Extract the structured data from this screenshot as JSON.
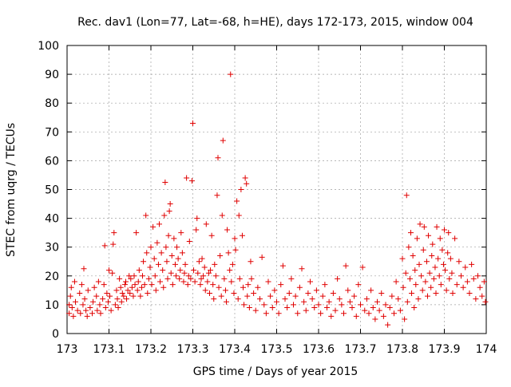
{
  "chart_data": {
    "type": "scatter",
    "title": "Rec. dav1 (Lon=77, Lat=-68, h=HE), days 172-173, 2015, window 004",
    "xlabel": "GPS time / Days of year 2015",
    "ylabel": "STEC from uqrg / TECUs",
    "xlim": [
      173,
      174
    ],
    "ylim": [
      0,
      100
    ],
    "x_ticks": [
      173,
      173.1,
      173.2,
      173.3,
      173.4,
      173.5,
      173.6,
      173.7,
      173.8,
      173.9,
      174
    ],
    "x_tick_labels": [
      "173",
      "173.1",
      "173.2",
      "173.3",
      "173.4",
      "173.5",
      "173.6",
      "173.7",
      "173.8",
      "173.9",
      "174"
    ],
    "y_ticks": [
      0,
      10,
      20,
      30,
      40,
      50,
      60,
      70,
      80,
      90,
      100
    ],
    "y_tick_labels": [
      "0",
      "10",
      "20",
      "30",
      "40",
      "50",
      "60",
      "70",
      "80",
      "90",
      "100"
    ],
    "grid": true,
    "marker": "plus",
    "color": "#e00000",
    "series": [
      {
        "points": [
          [
            173.005,
            10
          ],
          [
            173.005,
            7
          ],
          [
            173.008,
            13
          ],
          [
            173.01,
            16
          ],
          [
            173.012,
            9
          ],
          [
            173.015,
            6
          ],
          [
            173.018,
            18
          ],
          [
            173.02,
            11
          ],
          [
            173.025,
            8
          ],
          [
            173.03,
            14
          ],
          [
            173.032,
            7
          ],
          [
            173.035,
            17
          ],
          [
            173.038,
            10
          ],
          [
            173.04,
            22.5
          ],
          [
            173.042,
            12
          ],
          [
            173.045,
            8
          ],
          [
            173.048,
            6
          ],
          [
            173.05,
            15
          ],
          [
            173.055,
            9
          ],
          [
            173.06,
            7
          ],
          [
            173.062,
            11
          ],
          [
            173.065,
            16
          ],
          [
            173.07,
            13
          ],
          [
            173.072,
            8
          ],
          [
            173.075,
            18
          ],
          [
            173.078,
            10
          ],
          [
            173.08,
            7
          ],
          [
            173.085,
            12
          ],
          [
            173.088,
            17
          ],
          [
            173.09,
            30.5
          ],
          [
            173.092,
            9
          ],
          [
            173.095,
            14
          ],
          [
            173.098,
            11
          ],
          [
            173.1,
            22
          ],
          [
            173.102,
            13
          ],
          [
            173.105,
            8
          ],
          [
            173.108,
            21
          ],
          [
            173.11,
            31
          ],
          [
            173.112,
            35
          ],
          [
            173.115,
            10
          ],
          [
            173.118,
            15
          ],
          [
            173.12,
            12
          ],
          [
            173.122,
            9
          ],
          [
            173.125,
            19
          ],
          [
            173.128,
            16
          ],
          [
            173.13,
            11
          ],
          [
            173.132,
            14
          ],
          [
            173.135,
            13
          ],
          [
            173.138,
            17
          ],
          [
            173.14,
            18
          ],
          [
            173.142,
            12
          ],
          [
            173.145,
            15
          ],
          [
            173.148,
            20
          ],
          [
            173.15,
            14
          ],
          [
            173.152,
            19
          ],
          [
            173.155,
            16
          ],
          [
            173.158,
            13
          ],
          [
            173.16,
            20
          ],
          [
            173.162,
            17
          ],
          [
            173.165,
            35
          ],
          [
            173.168,
            15
          ],
          [
            173.17,
            18
          ],
          [
            173.172,
            22
          ],
          [
            173.175,
            13
          ],
          [
            173.178,
            16
          ],
          [
            173.18,
            20
          ],
          [
            173.182,
            25
          ],
          [
            173.185,
            17
          ],
          [
            173.188,
            41
          ],
          [
            173.19,
            28
          ],
          [
            173.192,
            14
          ],
          [
            173.195,
            19
          ],
          [
            173.198,
            23
          ],
          [
            173.2,
            30
          ],
          [
            173.202,
            17
          ],
          [
            173.205,
            37
          ],
          [
            173.208,
            26
          ],
          [
            173.21,
            20
          ],
          [
            173.212,
            15
          ],
          [
            173.215,
            31.5
          ],
          [
            173.218,
            24
          ],
          [
            173.22,
            38
          ],
          [
            173.222,
            18
          ],
          [
            173.225,
            28
          ],
          [
            173.228,
            22
          ],
          [
            173.23,
            16
          ],
          [
            173.232,
            41
          ],
          [
            173.234,
            52.5
          ],
          [
            173.236,
            30
          ],
          [
            173.238,
            25
          ],
          [
            173.24,
            19
          ],
          [
            173.242,
            34
          ],
          [
            173.244,
            42.5
          ],
          [
            173.246,
            45
          ],
          [
            173.248,
            21
          ],
          [
            173.25,
            27
          ],
          [
            173.252,
            17
          ],
          [
            173.255,
            33
          ],
          [
            173.258,
            24
          ],
          [
            173.26,
            20
          ],
          [
            173.262,
            30
          ],
          [
            173.265,
            26
          ],
          [
            173.268,
            19
          ],
          [
            173.27,
            22
          ],
          [
            173.272,
            35
          ],
          [
            173.275,
            28
          ],
          [
            173.278,
            18
          ],
          [
            173.28,
            21
          ],
          [
            173.282,
            24
          ],
          [
            173.285,
            54
          ],
          [
            173.288,
            17
          ],
          [
            173.29,
            20
          ],
          [
            173.292,
            32
          ],
          [
            173.295,
            19
          ],
          [
            173.298,
            53
          ],
          [
            173.3,
            73
          ],
          [
            173.302,
            22
          ],
          [
            173.305,
            18
          ],
          [
            173.308,
            36
          ],
          [
            173.31,
            40
          ],
          [
            173.312,
            21
          ],
          [
            173.315,
            25
          ],
          [
            173.318,
            17
          ],
          [
            173.32,
            19
          ],
          [
            173.322,
            26
          ],
          [
            173.325,
            20
          ],
          [
            173.328,
            23
          ],
          [
            173.33,
            15
          ],
          [
            173.332,
            38
          ],
          [
            173.335,
            18
          ],
          [
            173.338,
            21
          ],
          [
            173.34,
            14
          ],
          [
            173.342,
            22
          ],
          [
            173.345,
            34
          ],
          [
            173.348,
            17
          ],
          [
            173.35,
            12
          ],
          [
            173.352,
            24
          ],
          [
            173.355,
            20
          ],
          [
            173.358,
            48
          ],
          [
            173.36,
            61
          ],
          [
            173.362,
            16
          ],
          [
            173.365,
            27
          ],
          [
            173.368,
            13
          ],
          [
            173.37,
            41
          ],
          [
            173.372,
            67
          ],
          [
            173.375,
            19
          ],
          [
            173.378,
            15
          ],
          [
            173.38,
            11
          ],
          [
            173.382,
            36
          ],
          [
            173.385,
            28
          ],
          [
            173.388,
            22
          ],
          [
            173.39,
            90
          ],
          [
            173.392,
            18
          ],
          [
            173.395,
            24
          ],
          [
            173.398,
            14
          ],
          [
            173.4,
            33
          ],
          [
            173.402,
            29
          ],
          [
            173.405,
            46
          ],
          [
            173.408,
            12
          ],
          [
            173.41,
            41
          ],
          [
            173.412,
            19
          ],
          [
            173.415,
            50
          ],
          [
            173.418,
            34
          ],
          [
            173.42,
            16
          ],
          [
            173.422,
            10
          ],
          [
            173.425,
            54
          ],
          [
            173.428,
            52
          ],
          [
            173.43,
            13
          ],
          [
            173.432,
            17
          ],
          [
            173.435,
            9
          ],
          [
            173.438,
            25
          ],
          [
            173.44,
            19
          ],
          [
            173.445,
            14
          ],
          [
            173.45,
            8
          ],
          [
            173.455,
            16
          ],
          [
            173.46,
            12
          ],
          [
            173.465,
            26.5
          ],
          [
            173.47,
            10
          ],
          [
            173.475,
            7
          ],
          [
            173.48,
            18
          ],
          [
            173.485,
            13
          ],
          [
            173.49,
            9
          ],
          [
            173.495,
            15
          ],
          [
            173.5,
            11
          ],
          [
            173.505,
            7
          ],
          [
            173.51,
            17
          ],
          [
            173.515,
            23.5
          ],
          [
            173.52,
            12
          ],
          [
            173.525,
            9
          ],
          [
            173.53,
            14
          ],
          [
            173.535,
            19
          ],
          [
            173.54,
            10
          ],
          [
            173.545,
            13
          ],
          [
            173.55,
            7
          ],
          [
            173.555,
            16
          ],
          [
            173.56,
            22.5
          ],
          [
            173.565,
            11
          ],
          [
            173.57,
            8
          ],
          [
            173.575,
            14
          ],
          [
            173.58,
            18
          ],
          [
            173.585,
            12
          ],
          [
            173.59,
            9
          ],
          [
            173.595,
            15
          ],
          [
            173.6,
            10
          ],
          [
            173.605,
            7
          ],
          [
            173.61,
            13
          ],
          [
            173.615,
            17
          ],
          [
            173.62,
            9
          ],
          [
            173.625,
            11
          ],
          [
            173.63,
            6
          ],
          [
            173.635,
            14
          ],
          [
            173.64,
            8
          ],
          [
            173.645,
            19
          ],
          [
            173.65,
            12
          ],
          [
            173.655,
            10
          ],
          [
            173.66,
            7
          ],
          [
            173.665,
            23.5
          ],
          [
            173.67,
            15
          ],
          [
            173.675,
            11
          ],
          [
            173.68,
            9
          ],
          [
            173.685,
            13
          ],
          [
            173.69,
            6
          ],
          [
            173.695,
            17
          ],
          [
            173.7,
            10
          ],
          [
            173.705,
            23
          ],
          [
            173.71,
            8
          ],
          [
            173.715,
            12
          ],
          [
            173.72,
            7
          ],
          [
            173.725,
            15
          ],
          [
            173.73,
            9
          ],
          [
            173.735,
            5
          ],
          [
            173.74,
            11
          ],
          [
            173.745,
            8
          ],
          [
            173.75,
            14
          ],
          [
            173.755,
            6
          ],
          [
            173.76,
            10
          ],
          [
            173.765,
            3
          ],
          [
            173.77,
            9
          ],
          [
            173.775,
            13
          ],
          [
            173.78,
            7
          ],
          [
            173.785,
            18
          ],
          [
            173.79,
            12
          ],
          [
            173.795,
            8
          ],
          [
            173.8,
            26
          ],
          [
            173.802,
            16
          ],
          [
            173.805,
            5
          ],
          [
            173.808,
            21
          ],
          [
            173.81,
            48
          ],
          [
            173.812,
            11
          ],
          [
            173.815,
            30
          ],
          [
            173.818,
            19
          ],
          [
            173.82,
            35
          ],
          [
            173.822,
            14
          ],
          [
            173.825,
            27
          ],
          [
            173.828,
            9
          ],
          [
            173.83,
            22
          ],
          [
            173.832,
            17
          ],
          [
            173.835,
            33
          ],
          [
            173.838,
            12
          ],
          [
            173.84,
            24
          ],
          [
            173.842,
            38
          ],
          [
            173.845,
            20
          ],
          [
            173.848,
            15
          ],
          [
            173.85,
            29
          ],
          [
            173.852,
            37
          ],
          [
            173.855,
            18
          ],
          [
            173.858,
            25
          ],
          [
            173.86,
            13
          ],
          [
            173.862,
            34
          ],
          [
            173.865,
            21
          ],
          [
            173.868,
            16
          ],
          [
            173.87,
            27
          ],
          [
            173.872,
            31
          ],
          [
            173.875,
            19
          ],
          [
            173.878,
            23
          ],
          [
            173.88,
            14
          ],
          [
            173.882,
            37
          ],
          [
            173.885,
            26
          ],
          [
            173.888,
            20
          ],
          [
            173.89,
            33
          ],
          [
            173.892,
            17
          ],
          [
            173.895,
            29
          ],
          [
            173.898,
            24
          ],
          [
            173.9,
            36
          ],
          [
            173.902,
            22
          ],
          [
            173.905,
            15
          ],
          [
            173.908,
            28
          ],
          [
            173.91,
            35
          ],
          [
            173.912,
            19
          ],
          [
            173.915,
            26
          ],
          [
            173.918,
            21
          ],
          [
            173.92,
            14
          ],
          [
            173.925,
            33
          ],
          [
            173.93,
            17
          ],
          [
            173.935,
            25
          ],
          [
            173.94,
            20
          ],
          [
            173.945,
            16
          ],
          [
            173.95,
            23
          ],
          [
            173.955,
            18
          ],
          [
            173.96,
            14
          ],
          [
            173.965,
            24
          ],
          [
            173.97,
            19
          ],
          [
            173.975,
            12
          ],
          [
            173.98,
            20
          ],
          [
            173.985,
            16
          ],
          [
            173.99,
            13
          ],
          [
            173.995,
            18
          ],
          [
            173.998,
            11
          ]
        ]
      }
    ]
  }
}
